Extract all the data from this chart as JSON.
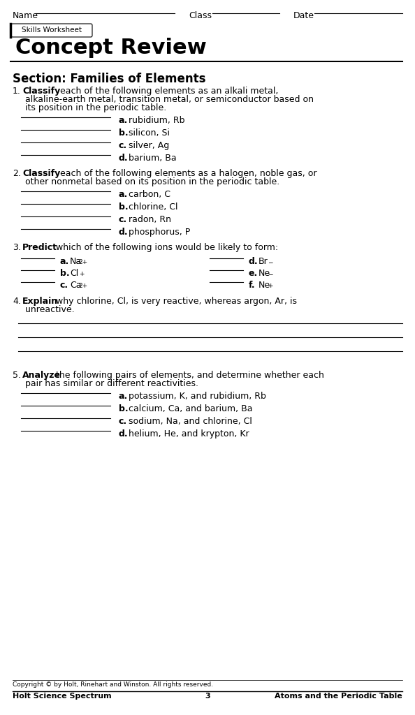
{
  "bg_color": "#ffffff",
  "text_color": "#000000",
  "title_header": "Skills Worksheet",
  "title_main": "Concept Review",
  "section_title": "Section: Families of Elements",
  "header_name": "Name",
  "header_class": "Class",
  "header_date": "Date",
  "footer_copyright": "Copyright © by Holt, Rinehart and Winston. All rights reserved.",
  "footer_left": "Holt Science Spectrum",
  "footer_center": "3",
  "footer_right": "Atoms and the Periodic Table",
  "questions": [
    {
      "num": "1.",
      "bold": "Classify",
      "rest": " each of the following elements as an alkali metal, alkaline-earth metal, transition metal, or semiconductor based on its position in the periodic table.",
      "items": [
        {
          "letter": "a.",
          "text": "rubidium, Rb"
        },
        {
          "letter": "b.",
          "text": "silicon, Si"
        },
        {
          "letter": "c.",
          "text": "silver, Ag"
        },
        {
          "letter": "d.",
          "text": "barium, Ba"
        }
      ]
    },
    {
      "num": "2.",
      "bold": "Classify",
      "rest": " each of the following elements as a halogen, noble gas, or other nonmetal based on its position in the periodic table.",
      "items": [
        {
          "letter": "a.",
          "text": "carbon, C"
        },
        {
          "letter": "b.",
          "text": "chlorine, Cl"
        },
        {
          "letter": "c.",
          "text": "radon, Rn"
        },
        {
          "letter": "d.",
          "text": "phosphorus, P"
        }
      ]
    },
    {
      "num": "3.",
      "bold": "Predict",
      "rest": " which of the following ions would be likely to form:",
      "type": "two_col",
      "items_left": [
        {
          "letter": "a.",
          "base": "Na",
          "sup": "2+"
        },
        {
          "letter": "b.",
          "base": "Cl",
          "sup": "+"
        },
        {
          "letter": "c.",
          "base": "Ca",
          "sup": "2+"
        }
      ],
      "items_right": [
        {
          "letter": "d.",
          "base": "Br",
          "sup": "−"
        },
        {
          "letter": "e.",
          "base": "Ne",
          "sup": "−"
        },
        {
          "letter": "f.",
          "base": "Ne",
          "sup": "+"
        }
      ]
    },
    {
      "num": "4.",
      "bold": "Explain",
      "rest": " why chlorine, Cl, is very reactive, whereas argon, Ar, is unreactive.",
      "type": "lines",
      "num_lines": 3
    },
    {
      "num": "5.",
      "bold": "Analyze",
      "rest": " the following pairs of elements, and determine whether each pair has similar or different reactivities.",
      "items": [
        {
          "letter": "a.",
          "text": "potassium, K, and rubidium, Rb"
        },
        {
          "letter": "b.",
          "text": "calcium, Ca, and barium, Ba"
        },
        {
          "letter": "c.",
          "text": "sodium, Na, and chlorine, Cl"
        },
        {
          "letter": "d.",
          "text": "helium, He, and krypton, Kr"
        }
      ]
    }
  ]
}
